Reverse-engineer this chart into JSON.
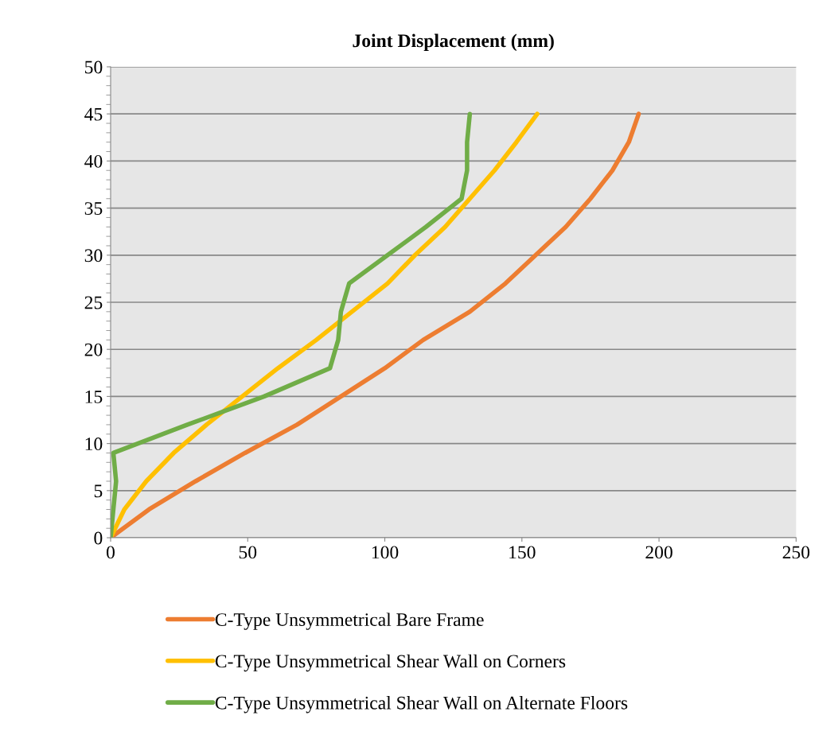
{
  "chart_data": {
    "type": "line",
    "title": "Joint Displacement (mm)",
    "xlim": [
      0,
      250
    ],
    "xticks": [
      0,
      50,
      100,
      150,
      200,
      250
    ],
    "ylim": [
      0,
      50
    ],
    "yticks": [
      0,
      5,
      10,
      15,
      20,
      25,
      30,
      35,
      40,
      45,
      50
    ],
    "grid": "y",
    "legend": "bottom",
    "marker": "none",
    "line_style": "solid",
    "series": [
      {
        "name": "C-Type Unsymmetrical Bare Frame",
        "color": "#ed7d31",
        "x": [
          0,
          14,
          31,
          49,
          68,
          84,
          100,
          114,
          131,
          144,
          155,
          166,
          175,
          183,
          189,
          192.6
        ],
        "values": [
          0,
          3,
          6,
          9,
          12,
          15,
          18,
          21,
          24,
          27,
          30,
          33,
          36,
          39,
          42,
          45
        ]
      },
      {
        "name": "C-Type Unsymmetrical Shear Wall on Corners",
        "color": "#ffc000",
        "x": [
          0,
          5,
          13,
          23,
          35,
          48,
          61,
          75,
          88,
          101,
          111,
          122,
          131,
          140,
          148,
          155.6
        ],
        "values": [
          0,
          3,
          6,
          9,
          12,
          15,
          18,
          21,
          24,
          27,
          30,
          33,
          36,
          39,
          42,
          45
        ]
      },
      {
        "name": "C-Type Unsymmetrical Shear Wall on Alternate Floors",
        "color": "#70ad47",
        "x": [
          0,
          1,
          2,
          1,
          28,
          56,
          80,
          83,
          84,
          87,
          101,
          115,
          128,
          130,
          130,
          131
        ],
        "values": [
          0,
          3,
          6,
          9,
          12,
          15,
          18,
          21,
          24,
          27,
          30,
          33,
          36,
          39,
          42,
          45
        ]
      }
    ]
  }
}
